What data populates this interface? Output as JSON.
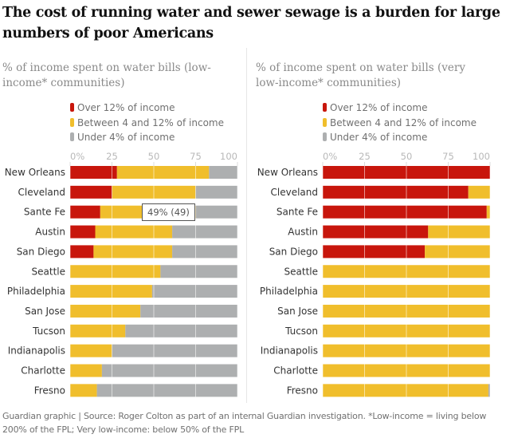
{
  "title": "The cost of running water and sewer sewage is a burden for large numbers of poor Americans",
  "footer": "Guardian graphic | Source: Roger Colton as part of an internal Guardian investigation. *Low-income = living below 200% of the FPL; Very low-income: below 50% of the FPL",
  "colors": {
    "over12": "#c8160c",
    "between": "#f0be2c",
    "under4": "#adafb0"
  },
  "chart_data": [
    {
      "type": "bar",
      "orientation": "horizontal",
      "stacked": true,
      "title": "% of income spent on water bills (low-income* communities)",
      "xlabel": "",
      "ylabel": "",
      "xlim": [
        0,
        100
      ],
      "xticks": [
        "0%",
        "25",
        "50",
        "75",
        "100"
      ],
      "legend": "top",
      "categories": [
        "New Orleans",
        "Cleveland",
        "Sante Fe",
        "Austin",
        "San Diego",
        "Seattle",
        "Philadelphia",
        "San Jose",
        "Tucson",
        "Indianapolis",
        "Charlotte",
        "Fresno"
      ],
      "series": [
        {
          "name": "Over 12% of income",
          "key": "over12",
          "values": [
            28,
            25,
            18,
            15,
            14,
            0,
            0,
            0,
            0,
            0,
            0,
            0
          ]
        },
        {
          "name": "Between 4 and 12% of income",
          "key": "between",
          "values": [
            55,
            50,
            57,
            46,
            47,
            54,
            49,
            42,
            33,
            25,
            19,
            16
          ]
        },
        {
          "name": "Under 4% of income",
          "key": "under4",
          "values": [
            17,
            25,
            25,
            39,
            39,
            46,
            51,
            58,
            67,
            75,
            81,
            84
          ]
        }
      ],
      "tooltip": {
        "text": "49% (49)",
        "row": 2
      }
    },
    {
      "type": "bar",
      "orientation": "horizontal",
      "stacked": true,
      "title": "% of income spent on water bills (very low-income* communities)",
      "xlabel": "",
      "ylabel": "",
      "xlim": [
        0,
        100
      ],
      "xticks": [
        "0%",
        "25",
        "50",
        "75",
        "100"
      ],
      "legend": "top",
      "categories": [
        "New Orleans",
        "Cleveland",
        "Sante Fe",
        "Austin",
        "San Diego",
        "Seattle",
        "Philadelphia",
        "San Jose",
        "Tucson",
        "Indianapolis",
        "Charlotte",
        "Fresno"
      ],
      "series": [
        {
          "name": "Over 12% of income",
          "key": "over12",
          "values": [
            100,
            87,
            98,
            63,
            61,
            0,
            0,
            0,
            0,
            0,
            0,
            0
          ]
        },
        {
          "name": "Between 4 and 12% of income",
          "key": "between",
          "values": [
            0,
            13,
            2,
            37,
            39,
            100,
            100,
            100,
            100,
            100,
            100,
            99
          ]
        },
        {
          "name": "Under 4% of income",
          "key": "under4",
          "values": [
            0,
            0,
            0,
            0,
            0,
            0,
            0,
            0,
            0,
            0,
            0,
            1
          ]
        }
      ]
    }
  ]
}
